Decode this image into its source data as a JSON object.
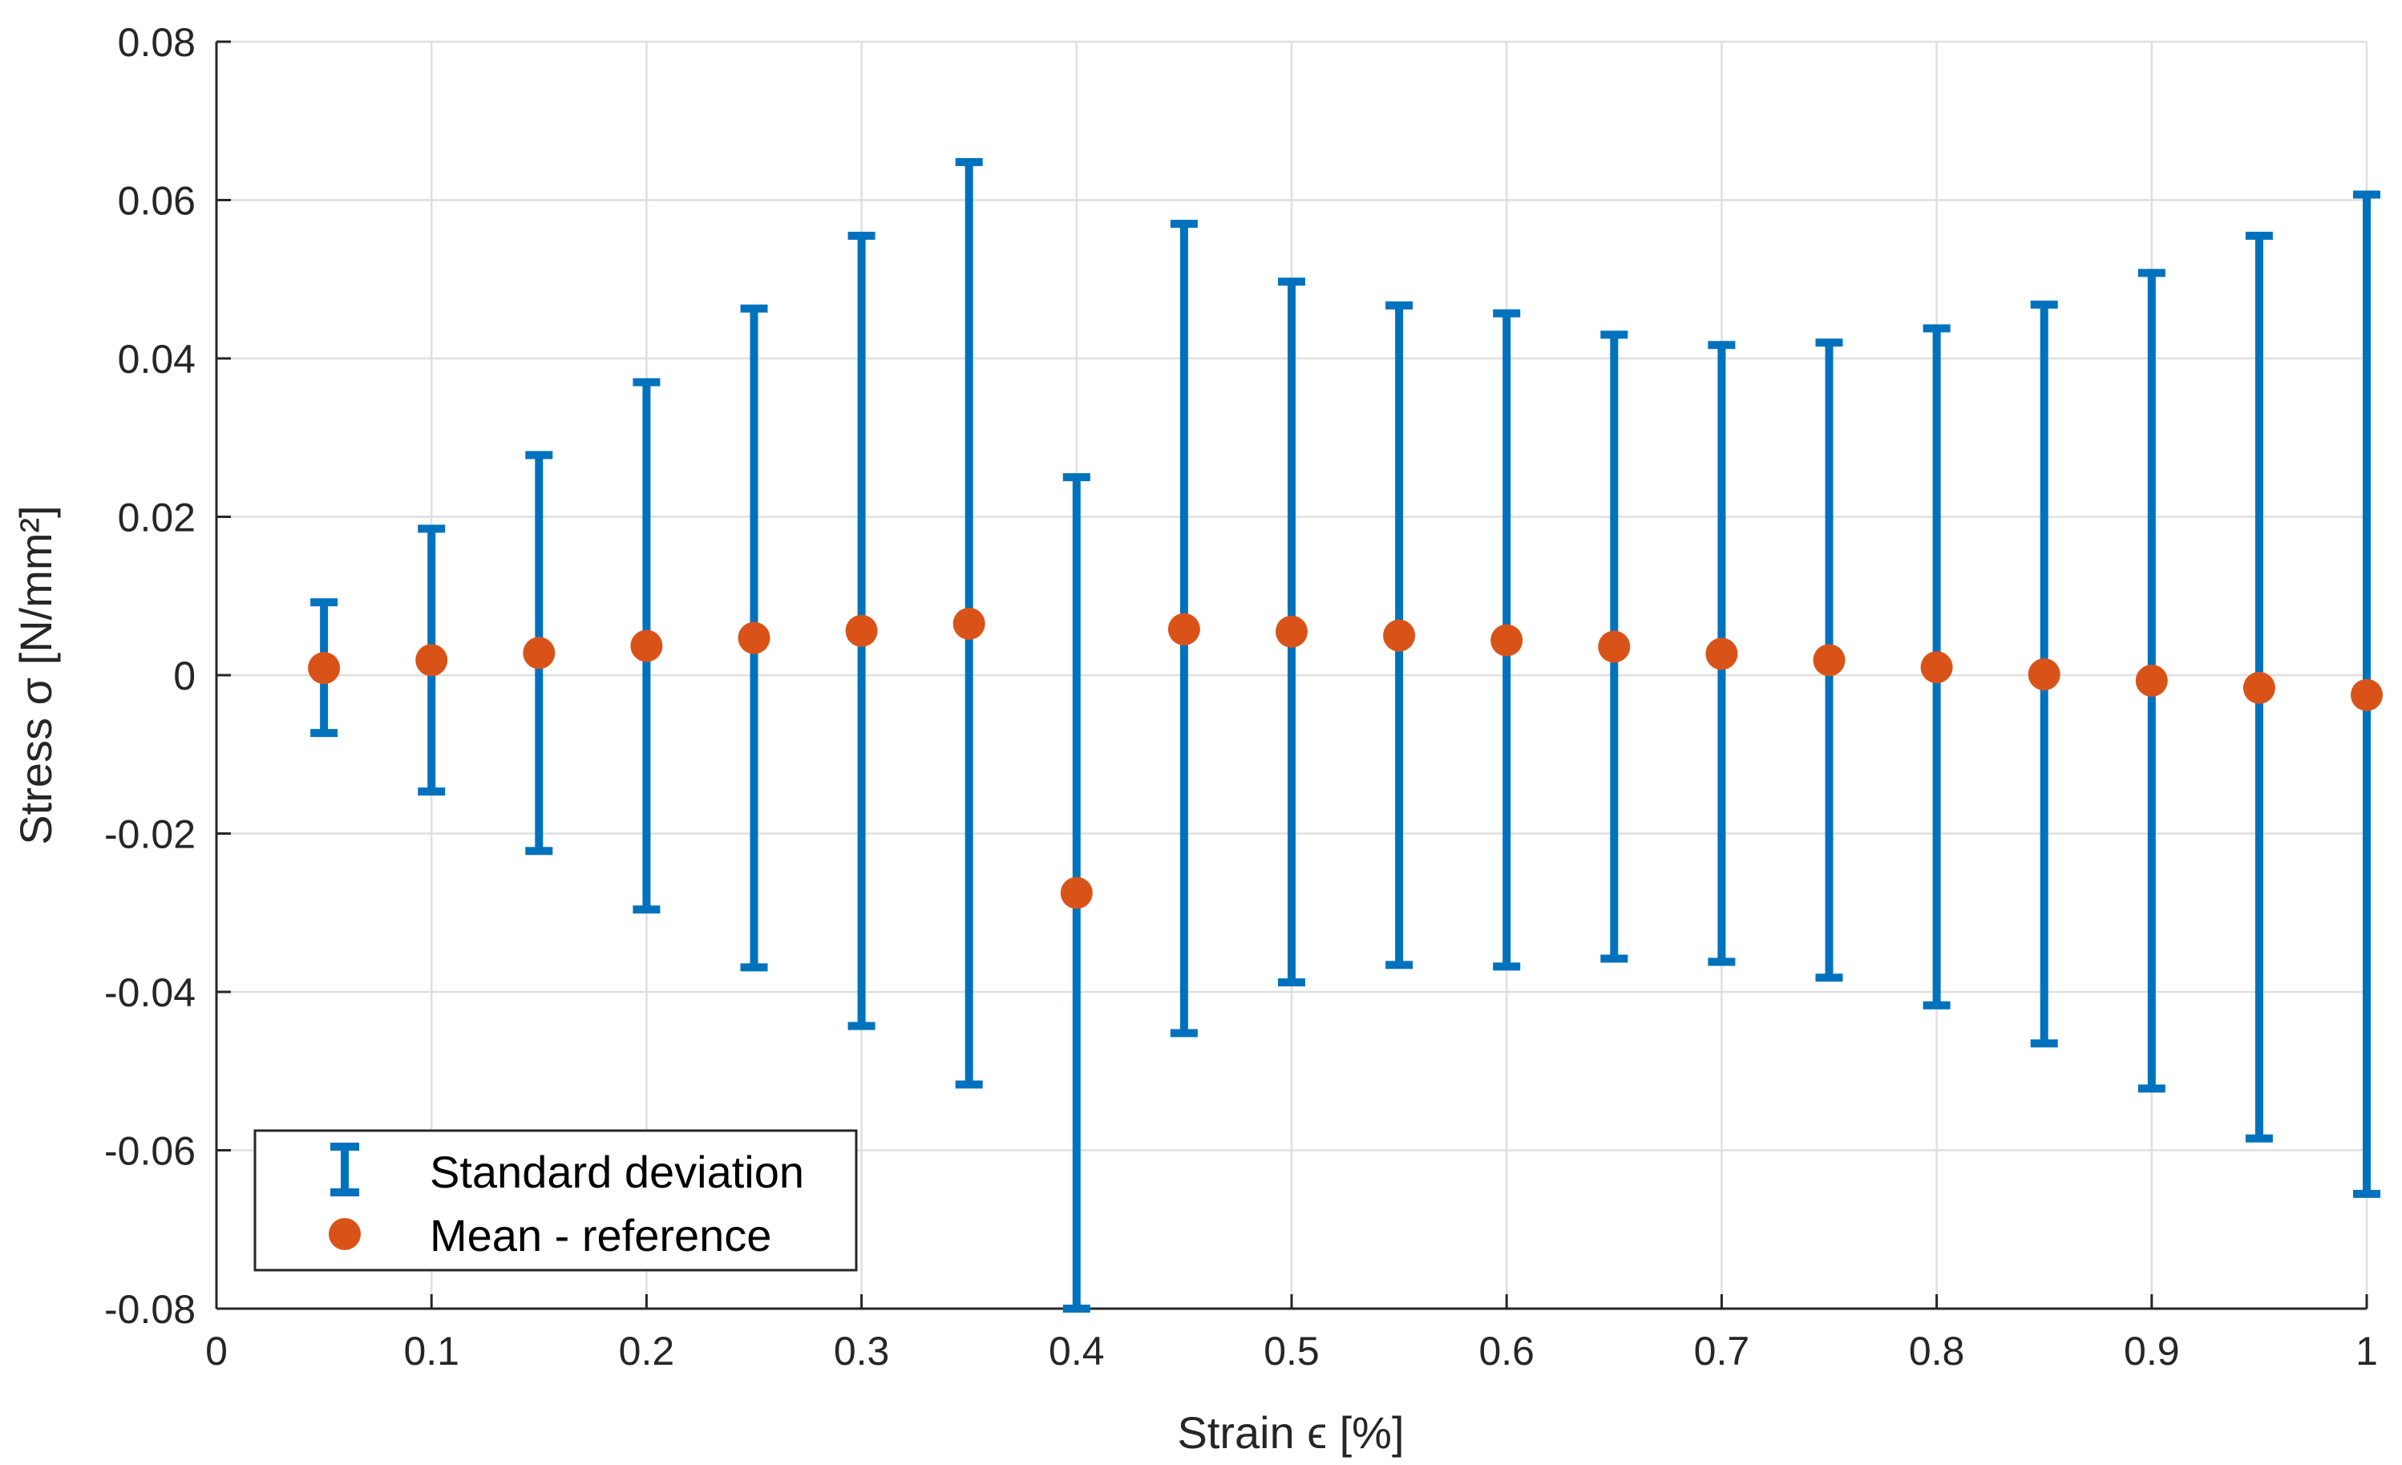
{
  "colors": {
    "errorbar": "#0072BD",
    "mean": "#D95319",
    "axis": "#262626",
    "grid": "#dfdfdf"
  },
  "chart_data": {
    "type": "scatter",
    "xlabel": "Strain ϵ [%]",
    "ylabel": "Stress σ [N/mm²]",
    "xlim": [
      0,
      1
    ],
    "ylim": [
      -0.08,
      0.08
    ],
    "xticks": [
      0,
      0.1,
      0.2,
      0.3,
      0.4,
      0.5,
      0.6,
      0.7,
      0.8,
      0.9,
      1
    ],
    "xtick_labels": [
      "0",
      "0.1",
      "0.2",
      "0.3",
      "0.4",
      "0.5",
      "0.6",
      "0.7",
      "0.8",
      "0.9",
      "1"
    ],
    "yticks": [
      -0.08,
      -0.06,
      -0.04,
      -0.02,
      0,
      0.02,
      0.04,
      0.06,
      0.08
    ],
    "ytick_labels": [
      "-0.08",
      "-0.06",
      "-0.04",
      "-0.02",
      "0",
      "0.02",
      "0.04",
      "0.06",
      "0.08"
    ],
    "grid": true,
    "legend_position": "bottom-left",
    "series": [
      {
        "name": "Standard deviation",
        "kind": "errorbar",
        "x": [
          0.05,
          0.1,
          0.15,
          0.2,
          0.25,
          0.3,
          0.35,
          0.4,
          0.45,
          0.5,
          0.55,
          0.6,
          0.65,
          0.7,
          0.75,
          0.8,
          0.85,
          0.9,
          0.95,
          1.0
        ],
        "upper": [
          0.0092,
          0.0185,
          0.0278,
          0.037,
          0.0463,
          0.0555,
          0.0648,
          0.025,
          0.057,
          0.0497,
          0.0467,
          0.0457,
          0.043,
          0.0417,
          0.042,
          0.0438,
          0.0468,
          0.0508,
          0.0555,
          0.0607
        ],
        "lower": [
          -0.0073,
          -0.0147,
          -0.0222,
          -0.0296,
          -0.0369,
          -0.0443,
          -0.0517,
          -0.08,
          -0.0452,
          -0.0388,
          -0.0366,
          -0.0368,
          -0.0358,
          -0.0362,
          -0.0382,
          -0.0417,
          -0.0465,
          -0.0522,
          -0.0585,
          -0.0655
        ]
      },
      {
        "name": "Mean - reference",
        "kind": "marker",
        "x": [
          0.05,
          0.1,
          0.15,
          0.2,
          0.25,
          0.3,
          0.35,
          0.4,
          0.45,
          0.5,
          0.55,
          0.6,
          0.65,
          0.7,
          0.75,
          0.8,
          0.85,
          0.9,
          0.95,
          1.0
        ],
        "y": [
          0.0009,
          0.0019,
          0.0028,
          0.0037,
          0.0047,
          0.0056,
          0.0065,
          -0.0275,
          0.0058,
          0.0055,
          0.005,
          0.0044,
          0.0036,
          0.0027,
          0.0019,
          0.001,
          0.0001,
          -0.0007,
          -0.0016,
          -0.0025
        ]
      }
    ]
  }
}
